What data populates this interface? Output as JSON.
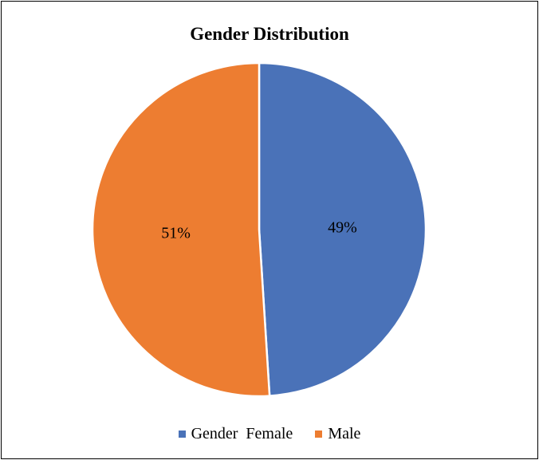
{
  "chart_data": {
    "type": "pie",
    "title": "Gender Distribution",
    "categories": [
      "Gender  Female",
      "Male"
    ],
    "values": [
      49,
      51
    ],
    "labels": [
      "49%",
      "51%"
    ],
    "colors": [
      "#4a72b8",
      "#ed7d31"
    ],
    "legend_position": "bottom"
  }
}
